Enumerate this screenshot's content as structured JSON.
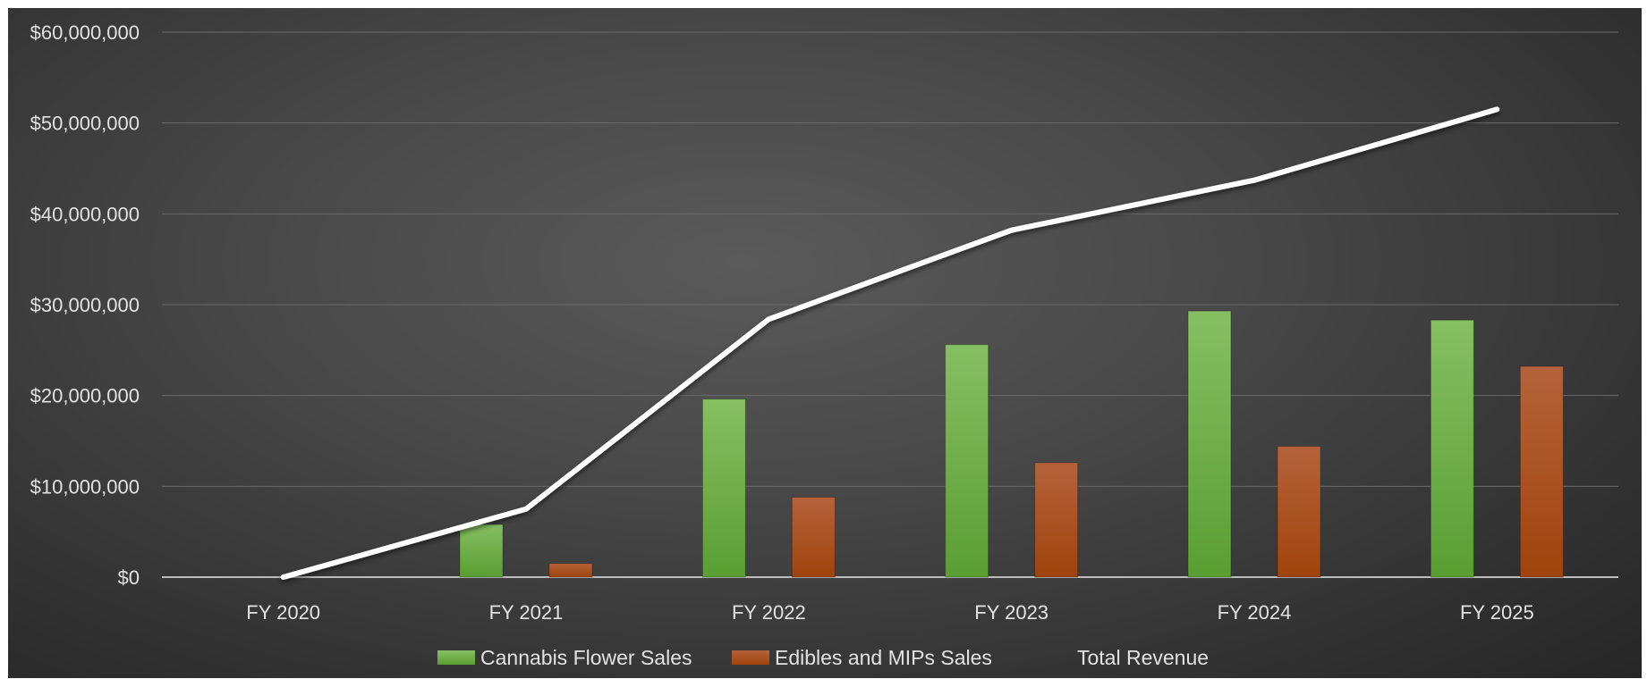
{
  "chart_data": {
    "type": "bar",
    "categories": [
      "FY 2020",
      "FY 2021",
      "FY 2022",
      "FY 2023",
      "FY 2024",
      "FY 2025"
    ],
    "series": [
      {
        "name": "Cannabis Flower Sales",
        "kind": "bar",
        "color": "#6fb04a",
        "values": [
          0,
          5800000,
          19600000,
          25600000,
          29300000,
          28300000
        ]
      },
      {
        "name": "Edibles and MIPs Sales",
        "kind": "bar",
        "color": "#b0521c",
        "values": [
          0,
          1500000,
          8800000,
          12600000,
          14400000,
          23200000
        ]
      },
      {
        "name": "Total Revenue",
        "kind": "line",
        "color": "#ffffff",
        "values": [
          0,
          7500000,
          28400000,
          38200000,
          43700000,
          51500000
        ]
      }
    ],
    "y_ticks": [
      "$0",
      "$10,000,000",
      "$20,000,000",
      "$30,000,000",
      "$40,000,000",
      "$50,000,000",
      "$60,000,000"
    ],
    "ylim": [
      0,
      60000000
    ],
    "title": "",
    "xlabel": "",
    "ylabel": "",
    "grid": true,
    "legend_position": "bottom",
    "background": "dark"
  }
}
